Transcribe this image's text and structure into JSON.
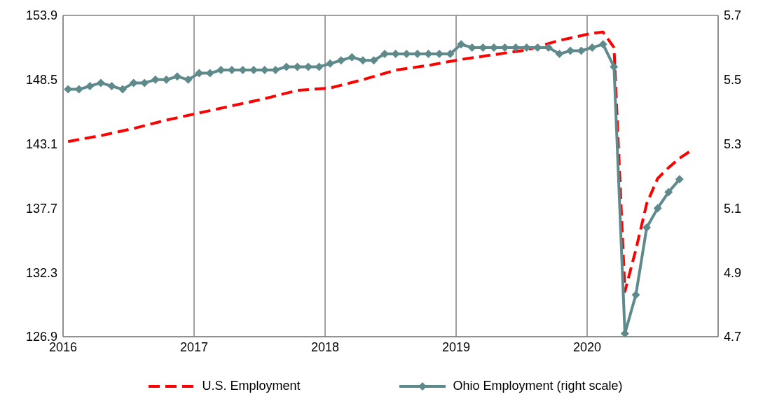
{
  "chart_data": {
    "type": "line",
    "grid": true,
    "legend": "bottom",
    "xlim": [
      "2016",
      "2021"
    ],
    "xticks": [
      {
        "value": "2016",
        "label": "2016"
      },
      {
        "value": "2017",
        "label": "2017"
      },
      {
        "value": "2018",
        "label": "2018"
      },
      {
        "value": "2019",
        "label": "2019"
      },
      {
        "value": "2020",
        "label": "2020"
      },
      {
        "value": "2021",
        "label": null
      }
    ],
    "ylim": [
      126.9,
      153.9
    ],
    "yticks": [
      126.9,
      132.3,
      137.7,
      143.1,
      148.5,
      153.9
    ],
    "y2lim": [
      4.7,
      5.7
    ],
    "y2ticks": [
      4.7,
      4.9,
      5.1,
      5.3,
      5.5,
      5.7
    ],
    "series": [
      {
        "name": "U.S. Employment",
        "color": "#ff0000",
        "line_style": "dashed",
        "marker": "none",
        "x": [
          "2016-01-15",
          "2016-04-15",
          "2016-07-15",
          "2016-10-15",
          "2017-01-15",
          "2017-04-15",
          "2017-07-15",
          "2017-10-15",
          "2018-01-15",
          "2018-04-15",
          "2018-07-15",
          "2018-10-15",
          "2019-01-15",
          "2019-04-15",
          "2019-07-15",
          "2019-10-15",
          "2020-01-15",
          "2020-02-15",
          "2020-03-15",
          "2020-04-15",
          "2020-05-15",
          "2020-06-15",
          "2020-07-15",
          "2020-08-15",
          "2020-09-15",
          "2020-10-15"
        ],
        "values": [
          143.3,
          143.8,
          144.4,
          145.1,
          145.7,
          146.3,
          146.9,
          147.6,
          147.8,
          148.5,
          149.3,
          149.7,
          150.2,
          150.6,
          151.0,
          151.8,
          152.4,
          152.5,
          151.2,
          130.7,
          134.2,
          138.1,
          140.2,
          141.1,
          141.9,
          142.5
        ]
      },
      {
        "name": "Ohio Employment (right scale)",
        "color": "#5f8a8b",
        "axis": "y2",
        "line_style": "solid",
        "marker": "diamond",
        "x": [
          "2016-01-15",
          "2016-02-15",
          "2016-03-15",
          "2016-04-15",
          "2016-05-15",
          "2016-06-15",
          "2016-07-15",
          "2016-08-15",
          "2016-09-15",
          "2016-10-15",
          "2016-11-15",
          "2016-12-15",
          "2017-01-15",
          "2017-02-15",
          "2017-03-15",
          "2017-04-15",
          "2017-05-15",
          "2017-06-15",
          "2017-07-15",
          "2017-08-15",
          "2017-09-15",
          "2017-10-15",
          "2017-11-15",
          "2017-12-15",
          "2018-01-15",
          "2018-02-15",
          "2018-03-15",
          "2018-04-15",
          "2018-05-15",
          "2018-06-15",
          "2018-07-15",
          "2018-08-15",
          "2018-09-15",
          "2018-10-15",
          "2018-11-15",
          "2018-12-15",
          "2019-01-15",
          "2019-02-15",
          "2019-03-15",
          "2019-04-15",
          "2019-05-15",
          "2019-06-15",
          "2019-07-15",
          "2019-08-15",
          "2019-09-15",
          "2019-10-15",
          "2019-11-15",
          "2019-12-15",
          "2020-01-15",
          "2020-02-15",
          "2020-03-15",
          "2020-04-15",
          "2020-05-15",
          "2020-06-15",
          "2020-07-15",
          "2020-08-15",
          "2020-09-15"
        ],
        "values": [
          5.47,
          5.47,
          5.48,
          5.49,
          5.48,
          5.47,
          5.49,
          5.49,
          5.5,
          5.5,
          5.51,
          5.5,
          5.52,
          5.52,
          5.53,
          5.53,
          5.53,
          5.53,
          5.53,
          5.53,
          5.54,
          5.54,
          5.54,
          5.54,
          5.55,
          5.56,
          5.57,
          5.56,
          5.56,
          5.58,
          5.58,
          5.58,
          5.58,
          5.58,
          5.58,
          5.58,
          5.61,
          5.6,
          5.6,
          5.6,
          5.6,
          5.6,
          5.6,
          5.6,
          5.6,
          5.58,
          5.59,
          5.59,
          5.6,
          5.61,
          5.54,
          4.71,
          4.83,
          5.04,
          5.1,
          5.15,
          5.19
        ]
      }
    ]
  }
}
